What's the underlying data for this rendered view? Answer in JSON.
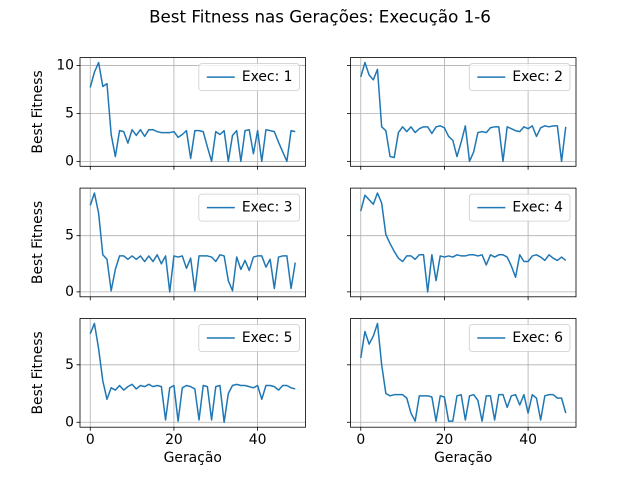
{
  "title": "Best Fitness nas Gerações: Execução 1-6",
  "chart_data": [
    {
      "type": "line",
      "ylabel": "Best Fitness",
      "grid": true,
      "legend": "upper right",
      "xtick_labels": false,
      "ytick_labels": true,
      "xlim": [
        -2.45,
        51.45
      ],
      "xticks": [
        0,
        20,
        40
      ],
      "ylim": [
        -0.515,
        10.815
      ],
      "yticks": [
        0,
        5,
        10
      ],
      "x": [
        0,
        1,
        2,
        3,
        4,
        5,
        6,
        7,
        8,
        9,
        10,
        11,
        12,
        13,
        14,
        15,
        16,
        17,
        18,
        19,
        20,
        21,
        22,
        23,
        24,
        25,
        26,
        27,
        28,
        29,
        30,
        31,
        32,
        33,
        34,
        35,
        36,
        37,
        38,
        39,
        40,
        41,
        42,
        43,
        44,
        45,
        46,
        47,
        48,
        49
      ],
      "series": [
        {
          "name": "Exec: 1",
          "color": "#1f77b4",
          "values": [
            7.7,
            9.3,
            10.3,
            7.8,
            8.1,
            2.8,
            0.5,
            3.2,
            3.1,
            1.9,
            3.3,
            2.7,
            3.3,
            2.6,
            3.3,
            3.3,
            3.1,
            3.0,
            3.0,
            3.0,
            3.1,
            2.5,
            2.8,
            3.2,
            0.3,
            3.2,
            3.2,
            3.1,
            1.5,
            0,
            3.1,
            2.8,
            3.2,
            0,
            2.7,
            3.2,
            0,
            3.2,
            3.3,
            0.8,
            3.2,
            0,
            3.3,
            3.2,
            3.1,
            2.0,
            1.0,
            0,
            3.2,
            3.1
          ]
        }
      ]
    },
    {
      "type": "line",
      "grid": true,
      "legend": "upper right",
      "xtick_labels": false,
      "ytick_labels": false,
      "xlim": [
        -2.45,
        51.45
      ],
      "xticks": [
        0,
        20,
        40
      ],
      "ylim": [
        -0.515,
        10.815
      ],
      "yticks": [
        0,
        5,
        10
      ],
      "x": [
        0,
        1,
        2,
        3,
        4,
        5,
        6,
        7,
        8,
        9,
        10,
        11,
        12,
        13,
        14,
        15,
        16,
        17,
        18,
        19,
        20,
        21,
        22,
        23,
        24,
        25,
        26,
        27,
        28,
        29,
        30,
        31,
        32,
        33,
        34,
        35,
        36,
        37,
        38,
        39,
        40,
        41,
        42,
        43,
        44,
        45,
        46,
        47,
        48,
        49
      ],
      "series": [
        {
          "name": "Exec: 2",
          "color": "#1f77b4",
          "values": [
            8.8,
            10.3,
            9.0,
            8.5,
            9.6,
            3.6,
            3.2,
            0.5,
            0.4,
            3.0,
            3.6,
            3.1,
            3.6,
            3.0,
            3.4,
            3.6,
            3.6,
            2.9,
            3.6,
            3.7,
            3.5,
            2.6,
            2.2,
            0.5,
            2.0,
            3.7,
            0,
            1.0,
            3.0,
            3.1,
            3.0,
            3.5,
            3.6,
            3.6,
            0,
            3.6,
            3.4,
            3.2,
            3.1,
            3.6,
            3.4,
            3.7,
            2.6,
            3.5,
            3.7,
            3.6,
            3.7,
            3.7,
            0,
            3.6
          ]
        }
      ]
    },
    {
      "type": "line",
      "ylabel": "Best Fitness",
      "grid": true,
      "legend": "upper right",
      "xtick_labels": false,
      "ytick_labels": true,
      "xlim": [
        -2.45,
        51.45
      ],
      "xticks": [
        0,
        20,
        40
      ],
      "ylim": [
        -0.44,
        9.24
      ],
      "yticks": [
        0,
        5
      ],
      "x": [
        0,
        1,
        2,
        3,
        4,
        5,
        6,
        7,
        8,
        9,
        10,
        11,
        12,
        13,
        14,
        15,
        16,
        17,
        18,
        19,
        20,
        21,
        22,
        23,
        24,
        25,
        26,
        27,
        28,
        29,
        30,
        31,
        32,
        33,
        34,
        35,
        36,
        37,
        38,
        39,
        40,
        41,
        42,
        43,
        44,
        45,
        46,
        47,
        48,
        49
      ],
      "series": [
        {
          "name": "Exec: 3",
          "color": "#1f77b4",
          "values": [
            7.7,
            8.8,
            7.0,
            3.3,
            2.9,
            0.1,
            2.0,
            3.2,
            3.2,
            2.9,
            3.2,
            2.9,
            3.2,
            2.7,
            3.2,
            2.7,
            3.3,
            2.5,
            3.2,
            0,
            3.2,
            3.1,
            3.2,
            2.1,
            3.0,
            0.1,
            3.2,
            3.2,
            3.2,
            3.1,
            2.7,
            3.3,
            3.2,
            1.0,
            0.1,
            3.1,
            2.0,
            2.8,
            1.9,
            3.1,
            3.2,
            3.2,
            2.2,
            2.9,
            0.3,
            3.1,
            3.2,
            3.2,
            0.3,
            2.6
          ]
        }
      ]
    },
    {
      "type": "line",
      "grid": true,
      "legend": "upper right",
      "xtick_labels": false,
      "ytick_labels": false,
      "xlim": [
        -2.45,
        51.45
      ],
      "xticks": [
        0,
        20,
        40
      ],
      "ylim": [
        -0.44,
        9.24
      ],
      "yticks": [
        0,
        5
      ],
      "x": [
        0,
        1,
        2,
        3,
        4,
        5,
        6,
        7,
        8,
        9,
        10,
        11,
        12,
        13,
        14,
        15,
        16,
        17,
        18,
        19,
        20,
        21,
        22,
        23,
        24,
        25,
        26,
        27,
        28,
        29,
        30,
        31,
        32,
        33,
        34,
        35,
        36,
        37,
        38,
        39,
        40,
        41,
        42,
        43,
        44,
        45,
        46,
        47,
        48,
        49
      ],
      "series": [
        {
          "name": "Exec: 4",
          "color": "#1f77b4",
          "values": [
            7.2,
            8.6,
            8.2,
            7.8,
            8.8,
            7.9,
            5.1,
            4.3,
            3.6,
            3.0,
            2.7,
            3.2,
            3.2,
            2.9,
            3.3,
            3.3,
            0,
            3.3,
            1.0,
            3.2,
            3.1,
            3.2,
            3.1,
            3.3,
            3.2,
            3.2,
            3.3,
            3.3,
            3.2,
            3.3,
            2.4,
            3.3,
            3.1,
            3.3,
            3.3,
            3.1,
            2.3,
            1.3,
            3.3,
            2.7,
            2.7,
            3.2,
            3.3,
            3.1,
            2.8,
            3.3,
            3.0,
            2.8,
            3.1,
            2.8
          ]
        }
      ]
    },
    {
      "type": "line",
      "ylabel": "Best Fitness",
      "xlabel": "Geração",
      "grid": true,
      "legend": "upper right",
      "xtick_labels": true,
      "ytick_labels": true,
      "xlim": [
        -2.45,
        51.45
      ],
      "xticks": [
        0,
        20,
        40
      ],
      "ylim": [
        -0.43,
        9.03
      ],
      "yticks": [
        0,
        5
      ],
      "x": [
        0,
        1,
        2,
        3,
        4,
        5,
        6,
        7,
        8,
        9,
        10,
        11,
        12,
        13,
        14,
        15,
        16,
        17,
        18,
        19,
        20,
        21,
        22,
        23,
        24,
        25,
        26,
        27,
        28,
        29,
        30,
        31,
        32,
        33,
        34,
        35,
        36,
        37,
        38,
        39,
        40,
        41,
        42,
        43,
        44,
        45,
        46,
        47,
        48,
        49
      ],
      "series": [
        {
          "name": "Exec: 5",
          "color": "#1f77b4",
          "values": [
            7.7,
            8.6,
            6.4,
            3.6,
            2.0,
            3.0,
            2.8,
            3.2,
            2.8,
            3.1,
            3.3,
            2.9,
            3.2,
            3.1,
            3.3,
            3.1,
            3.2,
            3.1,
            0.2,
            3.0,
            3.2,
            0.1,
            3.0,
            3.2,
            3.1,
            2.9,
            0.2,
            3.2,
            3.1,
            0.2,
            3.1,
            3.2,
            0.0,
            2.5,
            3.2,
            3.3,
            3.2,
            3.2,
            3.1,
            3.0,
            3.2,
            2.0,
            3.2,
            3.2,
            3.1,
            2.8,
            3.2,
            3.2,
            3.0,
            2.9
          ]
        }
      ]
    },
    {
      "type": "line",
      "xlabel": "Geração",
      "grid": true,
      "legend": "upper right",
      "xtick_labels": true,
      "ytick_labels": false,
      "xlim": [
        -2.45,
        51.45
      ],
      "xticks": [
        0,
        20,
        40
      ],
      "ylim": [
        -0.43,
        9.03
      ],
      "yticks": [
        0,
        5
      ],
      "x": [
        0,
        1,
        2,
        3,
        4,
        5,
        6,
        7,
        8,
        9,
        10,
        11,
        12,
        13,
        14,
        15,
        16,
        17,
        18,
        19,
        20,
        21,
        22,
        23,
        24,
        25,
        26,
        27,
        28,
        29,
        30,
        31,
        32,
        33,
        34,
        35,
        36,
        37,
        38,
        39,
        40,
        41,
        42,
        43,
        44,
        45,
        46,
        47,
        48,
        49
      ],
      "series": [
        {
          "name": "Exec: 6",
          "color": "#1f77b4",
          "values": [
            5.6,
            7.9,
            6.8,
            7.5,
            8.6,
            5.0,
            2.5,
            2.3,
            2.4,
            2.4,
            2.4,
            2.1,
            0.8,
            0.1,
            2.3,
            2.3,
            2.3,
            2.2,
            0.1,
            2.3,
            2.2,
            0.1,
            0.1,
            2.3,
            2.4,
            0.2,
            2.3,
            2.4,
            1.9,
            0.1,
            2.3,
            2.3,
            0.2,
            2.4,
            2.4,
            1.3,
            2.3,
            2.4,
            1.5,
            2.4,
            0.8,
            2.4,
            2.1,
            0.2,
            2.3,
            2.4,
            2.4,
            2.1,
            2.1,
            0.8
          ]
        }
      ]
    }
  ]
}
